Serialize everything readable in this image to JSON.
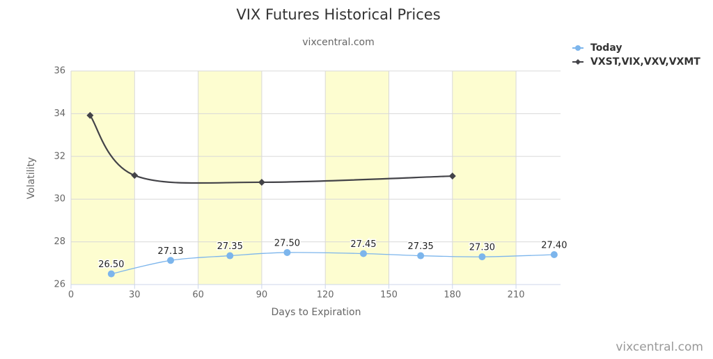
{
  "chart_data": {
    "type": "line",
    "title": "VIX Futures Historical Prices",
    "subtitle": "vixcentral.com",
    "credit": "vixcentral.com",
    "x_label": "Days to Expiration",
    "y_label": "Volatility",
    "xlim": [
      0,
      231
    ],
    "xticks": [
      0,
      30,
      60,
      90,
      120,
      150,
      180,
      210
    ],
    "ylim": [
      26,
      36
    ],
    "yticks": [
      26,
      28,
      30,
      32,
      34,
      36
    ],
    "grid": true,
    "plot_bands": [
      [
        0,
        30
      ],
      [
        60,
        90
      ],
      [
        120,
        150
      ],
      [
        180,
        210
      ]
    ],
    "band_color": "#fdfdd0",
    "legend": "top-right",
    "series": [
      {
        "name": "Today",
        "color": "#7cb5ec",
        "marker": "circle",
        "x": [
          19,
          47,
          75,
          102,
          138,
          165,
          194,
          228
        ],
        "values": [
          26.5,
          27.13,
          27.35,
          27.5,
          27.45,
          27.35,
          27.3,
          27.4
        ],
        "value_labels": [
          "26.50",
          "27.13",
          "27.35",
          "27.50",
          "27.45",
          "27.35",
          "27.30",
          "27.40"
        ]
      },
      {
        "name": "VXST,VIX,VXV,VXMT",
        "color": "#434348",
        "marker": "diamond",
        "x": [
          9,
          30,
          90,
          180
        ],
        "values": [
          33.92,
          31.11,
          30.79,
          31.08
        ]
      }
    ]
  }
}
